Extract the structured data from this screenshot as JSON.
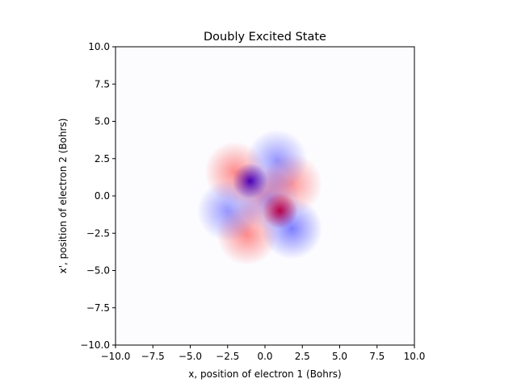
{
  "chart_data": {
    "type": "heatmap",
    "title": "Doubly Excited State",
    "xlabel": "x, position of electron 1 (Bohrs)",
    "ylabel": "x', position of electron 2 (Bohrs)",
    "xlim": [
      -10,
      10
    ],
    "ylim": [
      -10,
      10
    ],
    "xticks": [
      -10,
      -7.5,
      -5,
      -2.5,
      0,
      2.5,
      5,
      7.5,
      10
    ],
    "yticks": [
      -10,
      -7.5,
      -5,
      -2.5,
      0,
      2.5,
      5,
      7.5,
      10
    ],
    "xtick_labels": [
      "−10.0",
      "−7.5",
      "−5.0",
      "−2.5",
      "0.0",
      "2.5",
      "5.0",
      "7.5",
      "10.0"
    ],
    "ytick_labels": [
      "−10.0",
      "−7.5",
      "−5.0",
      "−2.5",
      "0.0",
      "2.5",
      "5.0",
      "7.5",
      "10.0"
    ],
    "colormap": "bwr",
    "colors": {
      "positive": "#ff0000",
      "negative": "#0000ff",
      "zero": "#ffffff"
    },
    "grid": false,
    "features": [
      {
        "x": -1.0,
        "y": 1.0,
        "sign": "negative",
        "amplitude": 1.0
      },
      {
        "x": 1.0,
        "y": -1.0,
        "sign": "positive",
        "amplitude": 1.0
      },
      {
        "x": -2.0,
        "y": 1.6,
        "sign": "positive",
        "amplitude": 0.45
      },
      {
        "x": 1.8,
        "y": 0.8,
        "sign": "positive",
        "amplitude": 0.4
      },
      {
        "x": -1.2,
        "y": -2.6,
        "sign": "positive",
        "amplitude": 0.45
      },
      {
        "x": -0.2,
        "y": 0.1,
        "sign": "positive",
        "amplitude": 0.3
      },
      {
        "x": 0.8,
        "y": 2.4,
        "sign": "negative",
        "amplitude": 0.4
      },
      {
        "x": -2.5,
        "y": -1.0,
        "sign": "negative",
        "amplitude": 0.4
      },
      {
        "x": 1.8,
        "y": -2.2,
        "sign": "negative",
        "amplitude": 0.5
      },
      {
        "x": 0.3,
        "y": -0.3,
        "sign": "negative",
        "amplitude": 0.3
      }
    ]
  }
}
